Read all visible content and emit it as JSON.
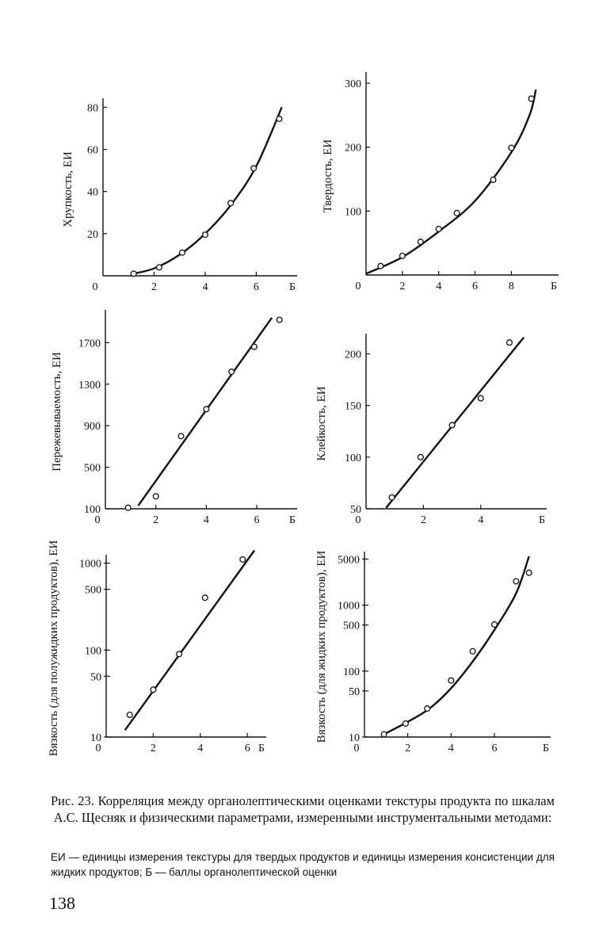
{
  "chart_data": [
    {
      "id": "brittleness",
      "type": "scatter",
      "ylabel": "Хрупкость, ЕИ",
      "xlabel": "Б",
      "xlim": [
        0,
        7.6
      ],
      "ylim": [
        0,
        82
      ],
      "xticks": [
        0,
        2,
        4,
        6
      ],
      "yticks": [
        20,
        40,
        60,
        80
      ],
      "points": [
        [
          1.2,
          1
        ],
        [
          2.2,
          4
        ],
        [
          3.1,
          11
        ],
        [
          4.0,
          19.5
        ],
        [
          5.0,
          34.5
        ],
        [
          5.9,
          51
        ],
        [
          6.9,
          74.5
        ]
      ],
      "fit": [
        [
          1.1,
          0.8
        ],
        [
          2,
          3.5
        ],
        [
          3,
          10
        ],
        [
          4,
          20
        ],
        [
          5,
          33.5
        ],
        [
          6,
          52
        ],
        [
          7,
          80
        ]
      ]
    },
    {
      "id": "hardness",
      "type": "scatter",
      "ylabel": "Твердость, ЕИ",
      "xlabel": "Б",
      "xlim": [
        0,
        10.6
      ],
      "ylim": [
        0,
        310
      ],
      "xticks": [
        0,
        2,
        4,
        6,
        8
      ],
      "yticks": [
        100,
        200,
        300
      ],
      "points": [
        [
          0.8,
          14
        ],
        [
          2.0,
          30
        ],
        [
          3.0,
          52
        ],
        [
          4.0,
          72
        ],
        [
          5.0,
          97
        ],
        [
          7.0,
          149
        ],
        [
          8.0,
          199
        ],
        [
          9.1,
          276
        ]
      ],
      "fit": [
        [
          0,
          2
        ],
        [
          2,
          28
        ],
        [
          4,
          68
        ],
        [
          6,
          116
        ],
        [
          8,
          192
        ],
        [
          9,
          250
        ],
        [
          9.35,
          290
        ]
      ]
    },
    {
      "id": "chewiness",
      "type": "scatter",
      "ylabel": "Пережевываемость, ЕИ",
      "xlabel": "Б",
      "xlim": [
        0,
        7.6
      ],
      "ylim": [
        100,
        1970
      ],
      "xticks": [
        0,
        2,
        4,
        6
      ],
      "yticks": [
        100,
        500,
        900,
        1300,
        1700
      ],
      "points": [
        [
          0.9,
          110
        ],
        [
          2.0,
          220
        ],
        [
          3.0,
          800
        ],
        [
          4.0,
          1060
        ],
        [
          5.0,
          1420
        ],
        [
          5.9,
          1660
        ],
        [
          6.9,
          1920
        ]
      ],
      "fit": [
        [
          1.3,
          130
        ],
        [
          6.6,
          1940
        ]
      ]
    },
    {
      "id": "adhesiveness",
      "type": "scatter",
      "ylabel": "Клейкость, ЕИ",
      "xlabel": "Б",
      "xlim": [
        0,
        6.3
      ],
      "ylim": [
        50,
        215
      ],
      "xticks": [
        0,
        2,
        4
      ],
      "yticks": [
        50,
        100,
        150,
        200
      ],
      "points": [
        [
          0.9,
          61
        ],
        [
          1.9,
          100
        ],
        [
          3.0,
          131
        ],
        [
          4.0,
          157
        ],
        [
          5.0,
          211
        ]
      ],
      "fit": [
        [
          0.7,
          51
        ],
        [
          5.5,
          216
        ]
      ]
    },
    {
      "id": "viscosity-semiliquid",
      "type": "scatter",
      "yscale": "log",
      "ylabel": "Вязкость (для полужидких продуктов), ЕИ",
      "xlabel": "Б",
      "xlim": [
        0,
        6.8
      ],
      "ylim": [
        10,
        1100
      ],
      "xticks": [
        0,
        2,
        4,
        6
      ],
      "yticks": [
        10,
        50,
        100,
        500,
        1000
      ],
      "points": [
        [
          1.0,
          18
        ],
        [
          2.0,
          35
        ],
        [
          3.1,
          90
        ],
        [
          4.2,
          400
        ],
        [
          5.8,
          1100
        ]
      ],
      "fit": [
        [
          0.8,
          12
        ],
        [
          6.3,
          1400
        ]
      ]
    },
    {
      "id": "viscosity-liquid",
      "type": "scatter",
      "yscale": "log",
      "ylabel": "Вязкость (для жидких продуктов), ЕИ",
      "xlabel": "Б",
      "xlim": [
        0,
        8.6
      ],
      "ylim": [
        10,
        5500
      ],
      "xticks": [
        0,
        2,
        4,
        6
      ],
      "yticks": [
        10,
        50,
        100,
        500,
        1000,
        5000
      ],
      "points": [
        [
          0.9,
          11
        ],
        [
          1.9,
          16
        ],
        [
          2.9,
          27
        ],
        [
          4.0,
          72
        ],
        [
          5.0,
          200
        ],
        [
          6.0,
          510
        ],
        [
          7.0,
          2300
        ],
        [
          7.6,
          3100
        ]
      ],
      "fit": [
        [
          0.9,
          11
        ],
        [
          2,
          17
        ],
        [
          3,
          27
        ],
        [
          4,
          55
        ],
        [
          5,
          140
        ],
        [
          6,
          420
        ],
        [
          7,
          1500
        ],
        [
          7.6,
          5500
        ]
      ]
    }
  ],
  "caption": {
    "main": "Рис. 23. Корреляция между органолептическими оценками текстуры продукта по шкалам А.С. Щесняк и физическими параметрами, измеренными инструментальными методами:",
    "note": "ЕИ — единицы измерения текстуры для твердых продуктов и единицы измерения консистенции для жидких продуктов; Б — баллы органолептической оценки"
  },
  "page_number": "138"
}
